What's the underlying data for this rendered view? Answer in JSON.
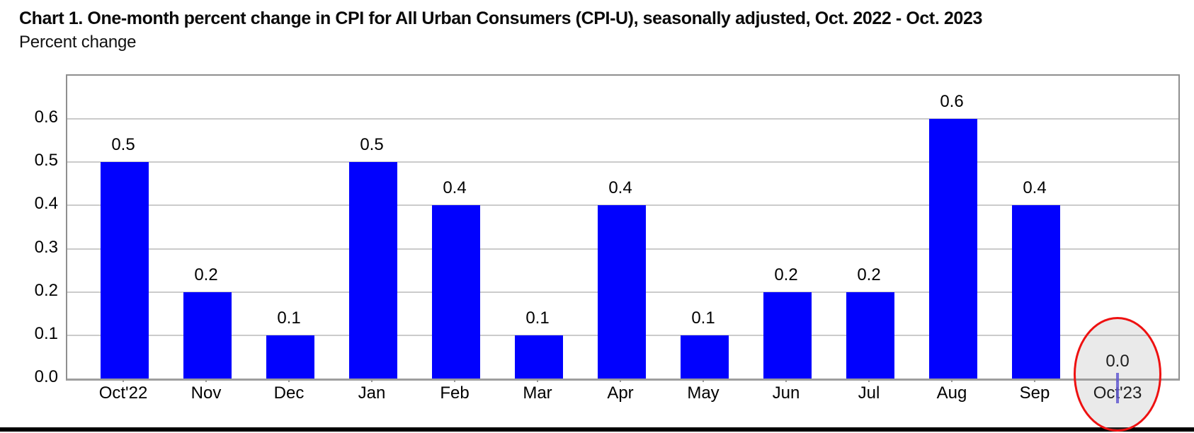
{
  "header": {
    "title": "Chart 1. One-month percent change in CPI for All Urban Consumers (CPI-U), seasonally adjusted, Oct. 2022 - Oct. 2023",
    "subtitle": "Percent change"
  },
  "chart_data": {
    "type": "bar",
    "title": "Chart 1. One-month percent change in CPI for All Urban Consumers (CPI-U), seasonally adjusted, Oct. 2022 - Oct. 2023",
    "ylabel": "Percent change",
    "categories": [
      "Oct'22",
      "Nov",
      "Dec",
      "Jan",
      "Feb",
      "Mar",
      "Apr",
      "May",
      "Jun",
      "Jul",
      "Aug",
      "Sep",
      "Oct'23"
    ],
    "values": [
      0.5,
      0.2,
      0.1,
      0.5,
      0.4,
      0.1,
      0.4,
      0.1,
      0.2,
      0.2,
      0.6,
      0.4,
      0.0
    ],
    "value_labels": [
      "0.5",
      "0.2",
      "0.1",
      "0.5",
      "0.4",
      "0.1",
      "0.4",
      "0.1",
      "0.2",
      "0.2",
      "0.6",
      "0.4",
      "0.0"
    ],
    "y_ticks": [
      "0.0",
      "0.1",
      "0.2",
      "0.3",
      "0.4",
      "0.5",
      "0.6"
    ],
    "y_tick_values": [
      0.0,
      0.1,
      0.2,
      0.3,
      0.4,
      0.5,
      0.6
    ],
    "ylim": [
      0,
      0.7
    ],
    "grid": true,
    "legend": "none",
    "bar_color": "#0101FE",
    "gridline_color": "#cbcbcb",
    "annotation": {
      "shape": "ellipse",
      "target_category": "Oct'23",
      "target_value": "0.0",
      "stroke_color": "#EE1111"
    }
  }
}
